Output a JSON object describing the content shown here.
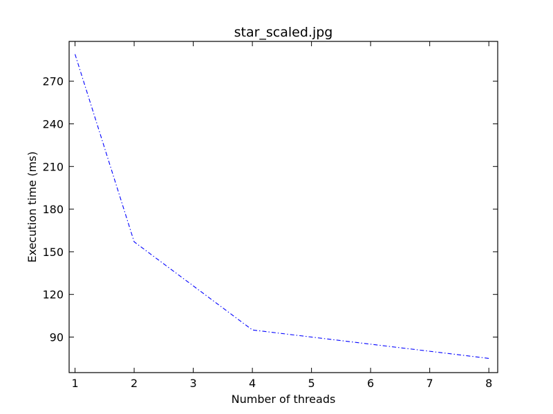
{
  "chart_data": {
    "type": "line",
    "title": "star_scaled.jpg",
    "xlabel": "Number of threads",
    "ylabel": "Execution time (ms)",
    "x": [
      1,
      2,
      4,
      8
    ],
    "series": [
      {
        "values": [
          289,
          157,
          95,
          75
        ],
        "color": "#0000ff",
        "line_style": "dash-dot"
      }
    ],
    "xlim": [
      0.9,
      8.15
    ],
    "ylim": [
      65,
      298
    ],
    "xticks": [
      1,
      2,
      3,
      4,
      5,
      6,
      7,
      8
    ],
    "yticks": [
      90,
      120,
      150,
      180,
      210,
      240,
      270
    ],
    "grid": false
  }
}
